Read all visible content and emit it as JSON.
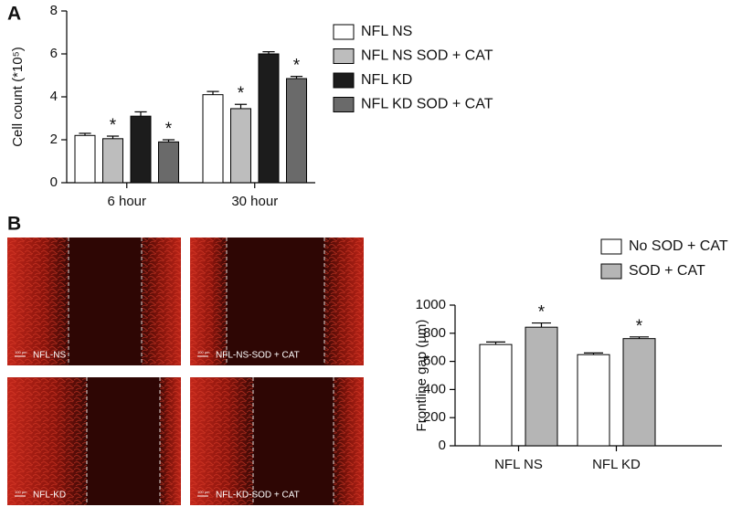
{
  "panel_labels": [
    "A",
    "B"
  ],
  "micrographs": [
    {
      "label": "NFL-NS",
      "scale": "100 µm"
    },
    {
      "label": "NFL-NS-SOD + CAT",
      "scale": "100 µm"
    },
    {
      "label": "NFL-KD",
      "scale": "100 µm"
    },
    {
      "label": "NFL-KD-SOD + CAT",
      "scale": "100 µm"
    }
  ],
  "chart_data": [
    {
      "type": "bar",
      "y_label": "Cell count (*10⁵)",
      "categories": [
        "6 hour",
        "30 hour"
      ],
      "ylim": [
        0,
        8
      ],
      "yticks": [
        0,
        2,
        4,
        6,
        8
      ],
      "series": [
        {
          "name": "NFL NS",
          "color": "#ffffff",
          "values": [
            2.2,
            4.1
          ],
          "errors": [
            0.1,
            0.15
          ]
        },
        {
          "name": "NFL NS SOD + CAT",
          "color": "#bdbdbd",
          "values": [
            2.05,
            3.45
          ],
          "errors": [
            0.12,
            0.2
          ],
          "significance": [
            "*",
            "*"
          ]
        },
        {
          "name": "NFL KD",
          "color": "#1c1c1c",
          "values": [
            3.1,
            6.0
          ],
          "errors": [
            0.2,
            0.1
          ]
        },
        {
          "name": "NFL KD SOD + CAT",
          "color": "#6a6a6a",
          "values": [
            1.9,
            4.85
          ],
          "errors": [
            0.1,
            0.1
          ],
          "significance": [
            "*",
            "*"
          ]
        }
      ]
    },
    {
      "type": "bar",
      "y_label": "Frontline gap (µm)",
      "categories": [
        "NFL NS",
        "NFL KD"
      ],
      "ylim": [
        0,
        1000
      ],
      "yticks": [
        0,
        200,
        400,
        600,
        800,
        1000
      ],
      "series": [
        {
          "name": "No SOD + CAT",
          "color": "#ffffff",
          "values": [
            720,
            648
          ],
          "errors": [
            18,
            12
          ]
        },
        {
          "name": "SOD + CAT",
          "color": "#b5b5b5",
          "values": [
            843,
            762
          ],
          "errors": [
            30,
            12
          ],
          "significance": [
            "*",
            "*"
          ]
        }
      ]
    }
  ]
}
